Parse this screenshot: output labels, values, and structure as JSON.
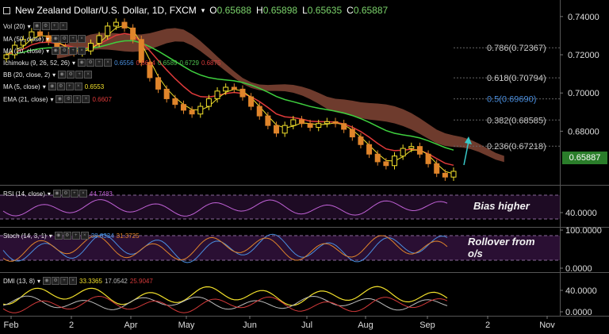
{
  "header": {
    "symbol_title": "New Zealand Dollar/U.S. Dollar, 1D, FXCM",
    "dropdown_glyph": "▾",
    "ohlc": [
      {
        "label": "O",
        "value": "0.65688"
      },
      {
        "label": "H",
        "value": "0.65898"
      },
      {
        "label": "L",
        "value": "0.65635"
      },
      {
        "label": "C",
        "value": "0.65887"
      }
    ]
  },
  "indicators": [
    {
      "name": "Vol (20)",
      "values": [],
      "color": "#ffffff"
    },
    {
      "name": "MA (50, close)",
      "values": [],
      "color": "#ffffff"
    },
    {
      "name": "MA (20, close)",
      "values": [],
      "color": "#ffffff"
    },
    {
      "name": "Ichimoku (9, 26, 52, 26)",
      "values": [
        {
          "text": "0.6556",
          "color": "#4a90e2"
        },
        {
          "text": "0.6614",
          "color": "#d43a3a"
        },
        {
          "text": "0.6589",
          "color": "#4fc04f"
        },
        {
          "text": "0.6729",
          "color": "#4fc04f"
        },
        {
          "text": "0.6875",
          "color": "#d43a3a"
        }
      ]
    },
    {
      "name": "BB (20, close, 2)",
      "values": [],
      "color": "#ffffff"
    },
    {
      "name": "MA (5, close)",
      "values": [
        {
          "text": "0.6553",
          "color": "#f2e02b"
        }
      ]
    },
    {
      "name": "EMA (21, close)",
      "values": [
        {
          "text": "0.6607",
          "color": "#e03a3a"
        }
      ]
    }
  ],
  "price_axis": {
    "ticks": [
      "0.74000",
      "0.72000",
      "0.70000",
      "0.68000"
    ],
    "last_price": "0.65887",
    "last_price_color": "#2a7d2a"
  },
  "fib_levels": [
    {
      "label": "0.786(0.72367)",
      "value": 0.72367,
      "color": "#cccccc"
    },
    {
      "label": "0.618(0.70794)",
      "value": 0.70794,
      "color": "#cccccc"
    },
    {
      "label": "0.5(0.69690)",
      "value": 0.6969,
      "color": "#4a90e2"
    },
    {
      "label": "0.382(0.68585)",
      "value": 0.68585,
      "color": "#cccccc"
    },
    {
      "label": "0.236(0.67218)",
      "value": 0.67218,
      "color": "#cccccc"
    }
  ],
  "rsi_panel": {
    "name": "RSI (14, close)",
    "value": "44.7483",
    "value_color": "#c061d6",
    "ticks": [
      "40.0000"
    ],
    "annotation": "Bias higher"
  },
  "stoch_panel": {
    "name": "Stoch (14, 3, 1)",
    "values": [
      {
        "text": "38.8334",
        "color": "#4a90e2"
      },
      {
        "text": "31.3725",
        "color": "#e0852b"
      }
    ],
    "ticks": [
      "100.0000",
      "0.0000"
    ],
    "annotation_line1": "Rollover from",
    "annotation_line2": "o/s"
  },
  "dmi_panel": {
    "name": "DMI (13, 8)",
    "values": [
      {
        "text": "33.3365",
        "color": "#f2e02b"
      },
      {
        "text": "17.0542",
        "color": "#bbbbbb"
      },
      {
        "text": "25.9047",
        "color": "#d43a3a"
      }
    ],
    "ticks": [
      "40.0000",
      "0.0000"
    ]
  },
  "time_axis": [
    "Feb",
    "2",
    "Apr",
    "May",
    "Jun",
    "Jul",
    "Aug",
    "Sep",
    "2",
    "Nov"
  ],
  "colors": {
    "up_candle": "#f2e02b",
    "down_candle": "#e0852b",
    "ma5": "#f2e02b",
    "ema21": "#e03a3a",
    "ma50": "#3ecf3e",
    "cloud": "#8a4a38",
    "arrow": "#38c9c9"
  },
  "chart_data": {
    "type": "candlestick",
    "title": "New Zealand Dollar/U.S. Dollar, 1D, FXCM",
    "x": [
      "Feb",
      "2",
      "Apr",
      "May",
      "Jun",
      "Jul",
      "Aug",
      "Sep",
      "2",
      "Nov"
    ],
    "ylim": [
      0.654,
      0.747
    ],
    "close_series_approx": [
      0.72,
      0.725,
      0.728,
      0.732,
      0.73,
      0.727,
      0.724,
      0.722,
      0.721,
      0.722,
      0.726,
      0.73,
      0.735,
      0.737,
      0.734,
      0.728,
      0.716,
      0.708,
      0.702,
      0.697,
      0.694,
      0.691,
      0.689,
      0.693,
      0.697,
      0.701,
      0.703,
      0.702,
      0.698,
      0.693,
      0.688,
      0.683,
      0.679,
      0.683,
      0.686,
      0.684,
      0.682,
      0.684,
      0.685,
      0.684,
      0.681,
      0.677,
      0.673,
      0.668,
      0.664,
      0.662,
      0.667,
      0.671,
      0.672,
      0.668,
      0.663,
      0.658,
      0.656,
      0.659
    ],
    "series": [
      {
        "name": "MA (5, close)",
        "last": 0.6553
      },
      {
        "name": "EMA (21, close)",
        "last": 0.6607
      }
    ]
  }
}
